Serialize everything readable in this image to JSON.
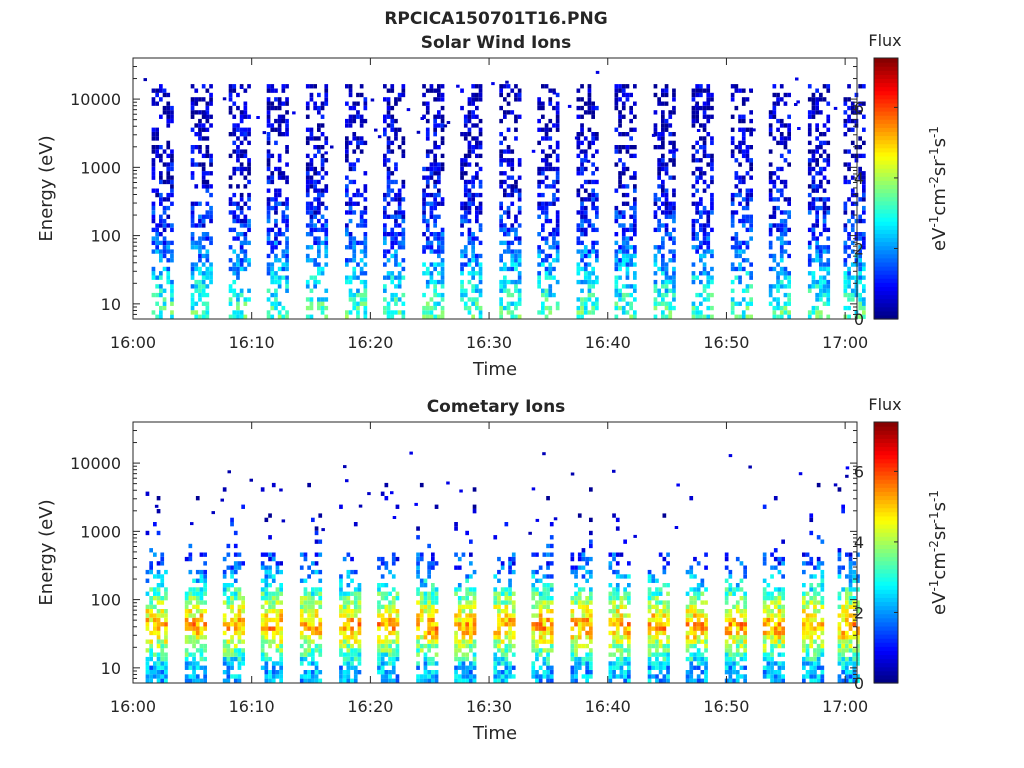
{
  "figure_title": "RPCICA150701T16.PNG",
  "chart_data": [
    {
      "type": "heatmap",
      "title": "Solar Wind Ions",
      "xlabel": "Time",
      "ylabel": "Energy (eV)",
      "x_ticks": [
        "16:00",
        "16:10",
        "16:20",
        "16:30",
        "16:40",
        "16:50",
        "17:00"
      ],
      "x_range": [
        "16:00",
        "17:01"
      ],
      "y_scale": "log",
      "y_ticks": [
        "10",
        "100",
        "1000",
        "10000"
      ],
      "y_range": [
        6,
        40000
      ],
      "colorbar": {
        "label": "Flux",
        "unit": "eV-1cm-2sr-1s-1",
        "ticks": [
          "0",
          "2",
          "4",
          "6"
        ],
        "range": [
          0,
          7.4
        ],
        "colormap": "jet"
      },
      "bursts_minutes": [
        2.5,
        5.8,
        9.0,
        12.2,
        15.5,
        18.8,
        22.0,
        25.3,
        28.5,
        31.8,
        35.0,
        38.3,
        41.5,
        44.8,
        48.0,
        51.3,
        54.5,
        57.8,
        60.8
      ],
      "flux_profile": [
        {
          "energy_ev": 8,
          "flux": 3.2
        },
        {
          "energy_ev": 30,
          "flux": 2.2
        },
        {
          "energy_ev": 100,
          "flux": 1.3
        },
        {
          "energy_ev": 1000,
          "flux": 0.6
        },
        {
          "energy_ev": 15000,
          "flux": 0.4
        }
      ]
    },
    {
      "type": "heatmap",
      "title": "Cometary Ions",
      "xlabel": "Time",
      "ylabel": "Energy (eV)",
      "x_ticks": [
        "16:00",
        "16:10",
        "16:20",
        "16:30",
        "16:40",
        "16:50",
        "17:00"
      ],
      "x_range": [
        "16:00",
        "17:01"
      ],
      "y_scale": "log",
      "y_ticks": [
        "10",
        "100",
        "1000",
        "10000"
      ],
      "y_range": [
        6,
        40000
      ],
      "colorbar": {
        "label": "Flux",
        "unit": "eV-1cm-2sr-1s-1",
        "ticks": [
          "0",
          "2",
          "4",
          "6"
        ],
        "range": [
          0,
          7.4
        ],
        "colormap": "jet"
      },
      "bursts_minutes": [
        2.0,
        5.3,
        8.5,
        11.7,
        15.0,
        18.3,
        21.5,
        24.8,
        28.0,
        31.3,
        34.5,
        37.8,
        41.0,
        44.3,
        47.5,
        50.8,
        54.0,
        57.3,
        60.3
      ],
      "flux_profile": [
        {
          "energy_ev": 10,
          "flux": 2.2
        },
        {
          "energy_ev": 25,
          "flux": 4.2
        },
        {
          "energy_ev": 40,
          "flux": 5.4
        },
        {
          "energy_ev": 100,
          "flux": 3.6
        },
        {
          "energy_ev": 300,
          "flux": 1.5
        },
        {
          "energy_ev": 3000,
          "flux": 0.3
        }
      ]
    }
  ]
}
